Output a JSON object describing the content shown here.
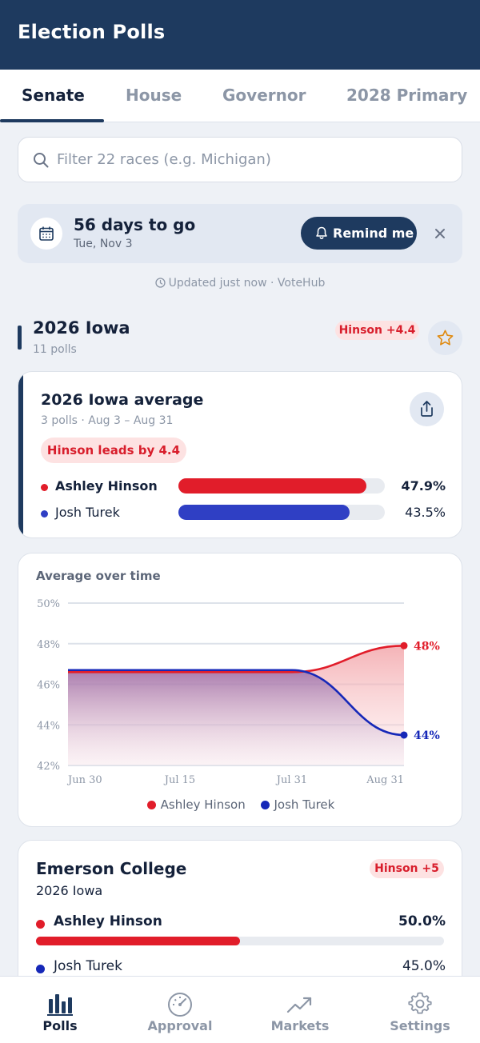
{
  "app": {
    "title": "Election Polls"
  },
  "tabs": [
    {
      "label": "Senate",
      "active": true
    },
    {
      "label": "House",
      "active": false
    },
    {
      "label": "Governor",
      "active": false
    },
    {
      "label": "2028 Primary",
      "active": false
    }
  ],
  "search": {
    "placeholder": "Filter 22 races (e.g. Michigan)",
    "value": ""
  },
  "countdown": {
    "days_label": "56 days to go",
    "date": "Tue, Nov 3",
    "remind_label": "Remind me"
  },
  "updated": {
    "text": "Updated just now · VoteHub"
  },
  "race": {
    "title": "2026 Iowa",
    "subtitle": "11 polls",
    "lead_badge": "Hinson +4.4"
  },
  "average": {
    "title": "2026 Iowa average",
    "subtitle": "3 polls · Aug 3 – Aug 31",
    "lead_text": "Hinson leads by 4.4",
    "candidates": [
      {
        "name": "Ashley Hinson",
        "pct": "47.9%",
        "value": 47.9,
        "color": "#e11d2a"
      },
      {
        "name": "Josh Turek",
        "pct": "43.5%",
        "value": 43.5,
        "color": "#2f3fc4"
      }
    ]
  },
  "chart_data": {
    "type": "area",
    "title": "Average over time",
    "x": [
      "Jun 30",
      "Jul 15",
      "Jul 31",
      "Aug 31"
    ],
    "y_ticks": [
      "50%",
      "48%",
      "46%",
      "44%",
      "42%"
    ],
    "ylim": [
      42,
      50
    ],
    "grid": true,
    "legend_position": "bottom",
    "series": [
      {
        "name": "Ashley Hinson",
        "color": "#e11d2a",
        "values": [
          46.6,
          46.6,
          46.6,
          47.9
        ],
        "end_label": "48%"
      },
      {
        "name": "Josh Turek",
        "color": "#1628b8",
        "values": [
          46.7,
          46.7,
          46.7,
          43.5
        ],
        "end_label": "44%"
      }
    ]
  },
  "poll": {
    "pollster": "Emerson College",
    "race": "2026 Iowa",
    "badge": "Hinson +5",
    "candidates": [
      {
        "name": "Ashley Hinson",
        "pct": "50.0%",
        "value": 50.0,
        "color": "#e11d2a"
      },
      {
        "name": "Josh Turek",
        "pct": "45.0%",
        "value": 45.0,
        "color": "#1628b8"
      }
    ]
  },
  "nav": [
    {
      "label": "Polls",
      "icon": "bar-chart-icon",
      "active": true
    },
    {
      "label": "Approval",
      "icon": "gauge-icon",
      "active": false
    },
    {
      "label": "Markets",
      "icon": "trend-up-icon",
      "active": false
    },
    {
      "label": "Settings",
      "icon": "gear-icon",
      "active": false
    }
  ]
}
